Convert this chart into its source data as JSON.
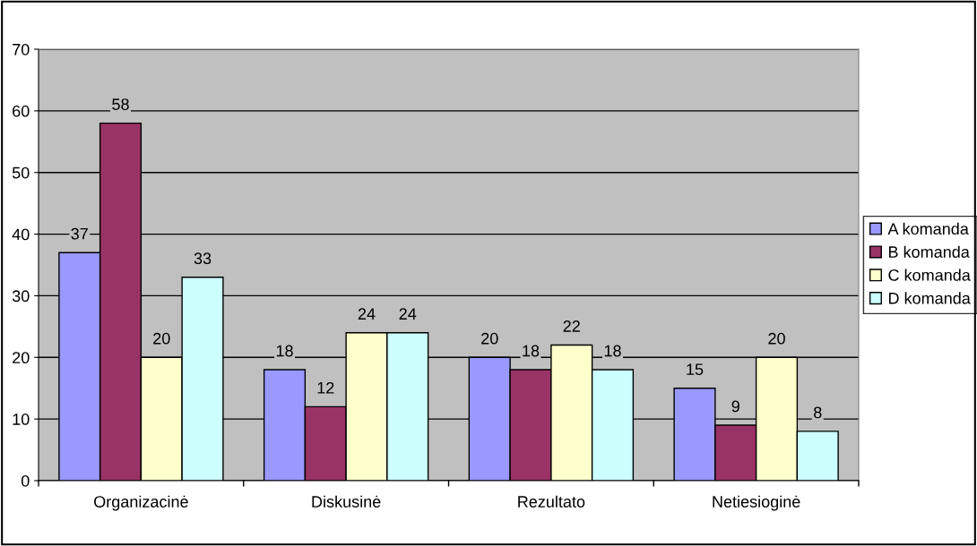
{
  "chart_data": {
    "type": "bar",
    "categories": [
      "Organizacinė",
      "Diskusinė",
      "Rezultato",
      "Netiesioginė"
    ],
    "series": [
      {
        "name": "A komanda",
        "color": "#9999ff",
        "values": [
          37,
          18,
          20,
          15
        ]
      },
      {
        "name": "B komanda",
        "color": "#993366",
        "values": [
          58,
          12,
          18,
          9
        ]
      },
      {
        "name": "C komanda",
        "color": "#ffffcc",
        "values": [
          20,
          24,
          22,
          20
        ]
      },
      {
        "name": "D komanda",
        "color": "#ccffff",
        "values": [
          33,
          24,
          18,
          8
        ]
      }
    ],
    "ylim": [
      0,
      70
    ],
    "yticks": [
      0,
      10,
      20,
      30,
      40,
      50,
      60,
      70
    ],
    "grid": "y",
    "legend": "right",
    "data_labels": true
  }
}
